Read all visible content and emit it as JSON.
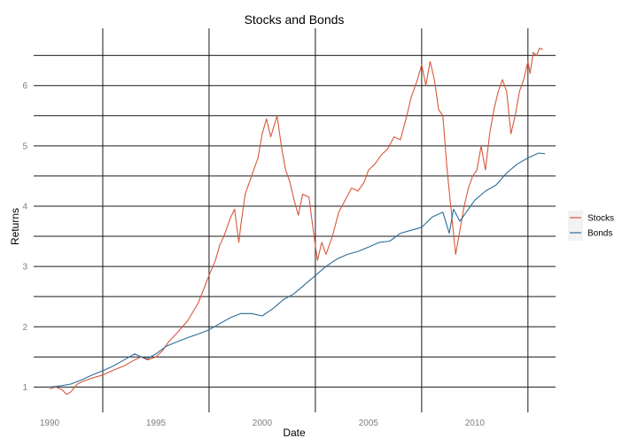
{
  "chart_data": {
    "type": "line",
    "title": "Stocks and Bonds",
    "xlabel": "Date",
    "ylabel": "Returns",
    "x_ticks": [
      1990,
      1995,
      2000,
      2005,
      2010
    ],
    "x_tick_labels": [
      "1990",
      "1995",
      "2000",
      "2005",
      "2010"
    ],
    "y_ticks": [
      1,
      2,
      3,
      4,
      5,
      6
    ],
    "y_tick_labels": [
      "1",
      "2",
      "3",
      "4",
      "5",
      "6"
    ],
    "xlim": [
      1989.25,
      2013.8
    ],
    "ylim": [
      0.58,
      6.95
    ],
    "grid": true,
    "legend_position": "right",
    "series": [
      {
        "name": "Stocks",
        "color": "#d7583b",
        "points": [
          [
            1990.0,
            0.97
          ],
          [
            1990.3,
            1.0
          ],
          [
            1990.6,
            0.95
          ],
          [
            1990.8,
            0.88
          ],
          [
            1991.0,
            0.92
          ],
          [
            1991.3,
            1.05
          ],
          [
            1991.6,
            1.1
          ],
          [
            1992.0,
            1.15
          ],
          [
            1992.5,
            1.2
          ],
          [
            1993.0,
            1.28
          ],
          [
            1993.5,
            1.35
          ],
          [
            1994.0,
            1.45
          ],
          [
            1994.3,
            1.5
          ],
          [
            1994.6,
            1.45
          ],
          [
            1995.0,
            1.5
          ],
          [
            1995.3,
            1.6
          ],
          [
            1995.6,
            1.75
          ],
          [
            1996.0,
            1.9
          ],
          [
            1996.5,
            2.1
          ],
          [
            1997.0,
            2.4
          ],
          [
            1997.5,
            2.85
          ],
          [
            1997.8,
            3.1
          ],
          [
            1998.0,
            3.35
          ],
          [
            1998.2,
            3.5
          ],
          [
            1998.5,
            3.8
          ],
          [
            1998.7,
            3.95
          ],
          [
            1998.9,
            3.4
          ],
          [
            1999.0,
            3.7
          ],
          [
            1999.2,
            4.2
          ],
          [
            1999.5,
            4.5
          ],
          [
            1999.8,
            4.8
          ],
          [
            2000.0,
            5.2
          ],
          [
            2000.2,
            5.45
          ],
          [
            2000.4,
            5.15
          ],
          [
            2000.7,
            5.5
          ],
          [
            2000.9,
            5.0
          ],
          [
            2001.1,
            4.6
          ],
          [
            2001.3,
            4.4
          ],
          [
            2001.5,
            4.1
          ],
          [
            2001.7,
            3.85
          ],
          [
            2001.9,
            4.2
          ],
          [
            2002.2,
            4.15
          ],
          [
            2002.4,
            3.6
          ],
          [
            2002.6,
            3.1
          ],
          [
            2002.8,
            3.4
          ],
          [
            2003.0,
            3.2
          ],
          [
            2003.3,
            3.5
          ],
          [
            2003.6,
            3.9
          ],
          [
            2003.9,
            4.1
          ],
          [
            2004.2,
            4.3
          ],
          [
            2004.5,
            4.25
          ],
          [
            2004.8,
            4.4
          ],
          [
            2005.0,
            4.6
          ],
          [
            2005.3,
            4.7
          ],
          [
            2005.6,
            4.85
          ],
          [
            2005.9,
            4.95
          ],
          [
            2006.2,
            5.15
          ],
          [
            2006.5,
            5.1
          ],
          [
            2006.8,
            5.5
          ],
          [
            2007.0,
            5.8
          ],
          [
            2007.3,
            6.1
          ],
          [
            2007.5,
            6.35
          ],
          [
            2007.7,
            6.0
          ],
          [
            2007.9,
            6.4
          ],
          [
            2008.1,
            6.1
          ],
          [
            2008.3,
            5.6
          ],
          [
            2008.5,
            5.5
          ],
          [
            2008.7,
            4.6
          ],
          [
            2008.9,
            3.9
          ],
          [
            2009.1,
            3.2
          ],
          [
            2009.3,
            3.6
          ],
          [
            2009.5,
            4.0
          ],
          [
            2009.7,
            4.3
          ],
          [
            2009.9,
            4.5
          ],
          [
            2010.1,
            4.6
          ],
          [
            2010.3,
            5.0
          ],
          [
            2010.5,
            4.6
          ],
          [
            2010.7,
            5.2
          ],
          [
            2010.9,
            5.6
          ],
          [
            2011.1,
            5.9
          ],
          [
            2011.3,
            6.1
          ],
          [
            2011.5,
            5.9
          ],
          [
            2011.7,
            5.2
          ],
          [
            2011.9,
            5.5
          ],
          [
            2012.1,
            5.9
          ],
          [
            2012.3,
            6.1
          ],
          [
            2012.5,
            6.4
          ],
          [
            2012.6,
            6.2
          ],
          [
            2012.75,
            6.55
          ],
          [
            2012.9,
            6.5
          ],
          [
            2013.05,
            6.62
          ],
          [
            2013.2,
            6.6
          ]
        ]
      },
      {
        "name": "Bonds",
        "color": "#2a6d98",
        "points": [
          [
            1990.0,
            1.0
          ],
          [
            1990.5,
            1.02
          ],
          [
            1991.0,
            1.05
          ],
          [
            1991.5,
            1.12
          ],
          [
            1992.0,
            1.2
          ],
          [
            1992.5,
            1.27
          ],
          [
            1993.0,
            1.35
          ],
          [
            1993.5,
            1.45
          ],
          [
            1994.0,
            1.55
          ],
          [
            1994.3,
            1.5
          ],
          [
            1994.6,
            1.47
          ],
          [
            1995.0,
            1.55
          ],
          [
            1995.5,
            1.68
          ],
          [
            1996.0,
            1.75
          ],
          [
            1996.5,
            1.82
          ],
          [
            1997.0,
            1.88
          ],
          [
            1997.5,
            1.95
          ],
          [
            1998.0,
            2.05
          ],
          [
            1998.5,
            2.15
          ],
          [
            1999.0,
            2.22
          ],
          [
            1999.5,
            2.22
          ],
          [
            2000.0,
            2.18
          ],
          [
            2000.5,
            2.3
          ],
          [
            2001.0,
            2.45
          ],
          [
            2001.5,
            2.55
          ],
          [
            2002.0,
            2.7
          ],
          [
            2002.5,
            2.85
          ],
          [
            2003.0,
            3.0
          ],
          [
            2003.5,
            3.12
          ],
          [
            2004.0,
            3.2
          ],
          [
            2004.5,
            3.25
          ],
          [
            2005.0,
            3.32
          ],
          [
            2005.5,
            3.4
          ],
          [
            2006.0,
            3.42
          ],
          [
            2006.5,
            3.55
          ],
          [
            2007.0,
            3.6
          ],
          [
            2007.5,
            3.65
          ],
          [
            2008.0,
            3.82
          ],
          [
            2008.5,
            3.9
          ],
          [
            2008.8,
            3.55
          ],
          [
            2009.0,
            3.95
          ],
          [
            2009.3,
            3.75
          ],
          [
            2009.6,
            3.9
          ],
          [
            2010.0,
            4.1
          ],
          [
            2010.5,
            4.25
          ],
          [
            2011.0,
            4.35
          ],
          [
            2011.5,
            4.55
          ],
          [
            2012.0,
            4.7
          ],
          [
            2012.5,
            4.8
          ],
          [
            2013.0,
            4.88
          ],
          [
            2013.3,
            4.87
          ]
        ]
      }
    ]
  }
}
